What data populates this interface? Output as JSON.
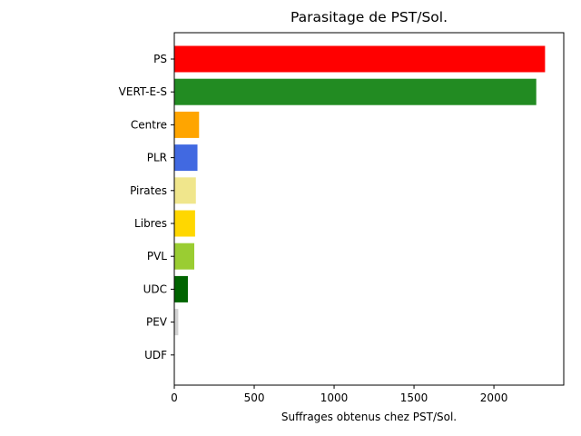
{
  "chart_data": {
    "type": "bar",
    "orientation": "horizontal",
    "title": "Parasitage de PST/Sol.",
    "xlabel": "Suffrages obtenus chez PST/Sol.",
    "ylabel": "",
    "categories": [
      "PS",
      "VERT-E-S",
      "Centre",
      "PLR",
      "Pirates",
      "Libres",
      "PVL",
      "UDC",
      "PEV",
      "UDF"
    ],
    "values": [
      2320,
      2265,
      155,
      145,
      135,
      130,
      125,
      85,
      25,
      3
    ],
    "colors": [
      "#ff0000",
      "#228b22",
      "#ffa500",
      "#4169e1",
      "#f0e68c",
      "#ffd700",
      "#9acd32",
      "#006400",
      "#d3d3d3",
      "#ffffff"
    ],
    "xlim": [
      0,
      2437
    ],
    "xticks": [
      0,
      500,
      1000,
      1500,
      2000
    ],
    "grid": false,
    "legend": "none"
  }
}
